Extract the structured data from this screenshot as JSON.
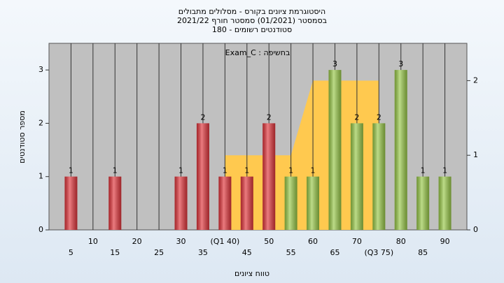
{
  "chart_data": {
    "type": "bar",
    "title": "היסטוגרמת ציונים בקורס - מסלולים מתבולים",
    "subtitle": "בסמסטר (01/2021) סמסטר חורף 2021/22",
    "subtitle2": "סטודנטים רשומים - 180",
    "annotation": "Exam_C : בחשיפה",
    "ylabel": "מספר סטודנטים",
    "xlabel": "טווח ציונים",
    "x": [
      5,
      10,
      15,
      20,
      25,
      30,
      35,
      40,
      45,
      50,
      55,
      60,
      65,
      70,
      75,
      80,
      85,
      90
    ],
    "values": [
      1,
      0,
      1,
      0,
      0,
      1,
      2,
      1,
      1,
      2,
      1,
      1,
      3,
      2,
      2,
      3,
      1,
      1
    ],
    "colors": [
      "#e0353b",
      "#e0353b",
      "#e0353b",
      "#e0353b",
      "#e0353b",
      "#e0353b",
      "#e0353b",
      "#e0353b",
      "#e0353b",
      "#e0353b",
      "#98c848",
      "#98c848",
      "#98c848",
      "#98c848",
      "#98c848",
      "#98c848",
      "#98c848",
      "#98c848"
    ],
    "xlim": [
      0,
      95
    ],
    "xticks": [
      5,
      10,
      15,
      20,
      25,
      30,
      35,
      {
        "value": 40,
        "label": "(Q1 40)"
      },
      45,
      50,
      55,
      60,
      65,
      70,
      {
        "value": 75,
        "label": "(Q3 75)"
      },
      80,
      85,
      90
    ],
    "ylim": [
      0,
      3.5
    ],
    "yticks": [
      0,
      1,
      2,
      3
    ],
    "y2lim": [
      0,
      2.5
    ],
    "y2ticks": [
      0,
      1,
      2
    ],
    "area": {
      "axis": "y2",
      "color": "#ffc94f",
      "x": [
        40,
        45,
        50,
        55,
        60,
        65,
        70,
        75
      ],
      "values": [
        1,
        1,
        1,
        1,
        2,
        2,
        2,
        2
      ]
    }
  }
}
